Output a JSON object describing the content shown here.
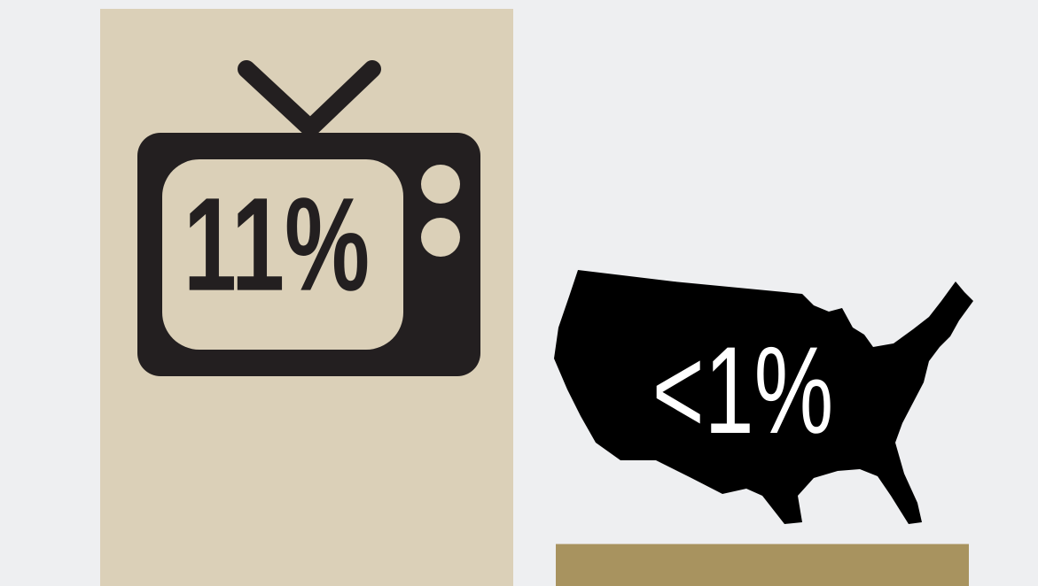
{
  "chart_data": {
    "type": "bar",
    "categories": [
      null,
      null
    ],
    "values": [
      11,
      0.8
    ],
    "value_labels": [
      "11%",
      "<1%"
    ],
    "colors": [
      "#dbd0b8",
      "#a8935f"
    ],
    "ylim": [
      0,
      11
    ]
  }
}
